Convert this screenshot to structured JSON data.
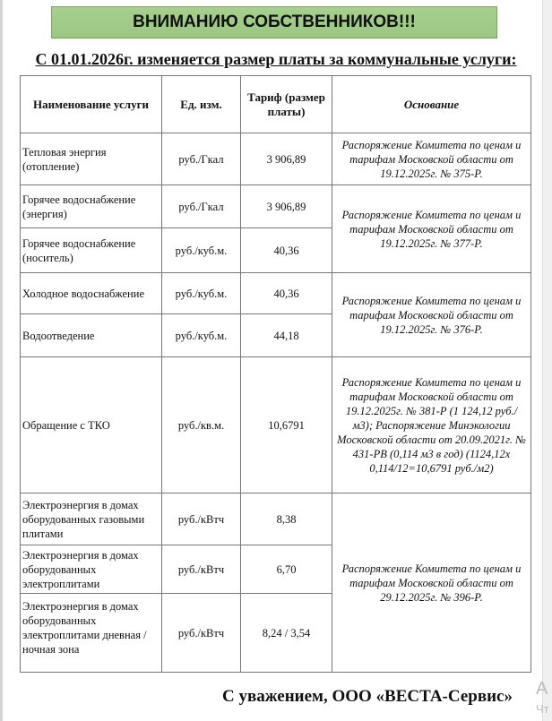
{
  "banner": "ВНИМАНИЮ СОБСТВЕННИКОВ!!!",
  "banner_color": "#a6d08c",
  "subtitle": "С 01.01.2026г. изменяется размер платы за коммунальные услуги:",
  "table": {
    "headers": [
      "Наименование услуги",
      "Ед. изм.",
      "Тариф (размер платы)",
      "Основание"
    ],
    "rows": [
      {
        "name": "Тепловая энергия (отопление)",
        "unit": "руб./Гкал",
        "tariff": "3 906,89"
      },
      {
        "name": "Горячее водоснабжение (энергия)",
        "unit": "руб./Гкал",
        "tariff": "3 906,89"
      },
      {
        "name": "Горячее водоснабжение (носитель)",
        "unit": "руб./куб.м.",
        "tariff": "40,36"
      },
      {
        "name": "Холодное водоснабжение",
        "unit": "руб./куб.м.",
        "tariff": "40,36"
      },
      {
        "name": "Водоотведение",
        "unit": "руб./куб.м.",
        "tariff": "44,18"
      },
      {
        "name": "Обращение с ТКО",
        "unit": "руб./кв.м.",
        "tariff": "10,6791"
      },
      {
        "name": "Электроэнергия в домах оборудованных газовыми плитами",
        "unit": "руб./кВтч",
        "tariff": "8,38"
      },
      {
        "name": "Электроэнергия в домах оборудованных электроплитами",
        "unit": "руб./кВтч",
        "tariff": "6,70"
      },
      {
        "name": "Электроэнергия в домах оборудованных электроплитами дневная / ночная зона",
        "unit": "руб./кВтч",
        "tariff": "8,24 / 3,54"
      }
    ],
    "basis": [
      "Распоряжение Комитета по ценам и тарифам Московской области от 19.12.2025г. № 375-Р.",
      "Распоряжение Комитета по ценам и тарифам Московской области от 19.12.2025г. № 377-Р.",
      "Распоряжение Комитета по ценам и тарифам Московской области от 19.12.2025г. № 376-Р.",
      "Распоряжение Комитета по ценам и тарифам Московской области от 19.12.2025г. № 381-Р (1 124,12 руб./м3); Распоряжение Минэкологии Московской области от 20.09.2021г. № 431-РВ (0,114 м3 в год) (1124,12х 0,114/12=10,6791 руб./м2)",
      "Распоряжение Комитета по ценам и тарифам Московской области от 29.12.2025г. № 396-Р."
    ]
  },
  "footer": "С уважением, ООО «ВЕСТА-Сервис»",
  "watermark": [
    "А",
    "Чт"
  ]
}
